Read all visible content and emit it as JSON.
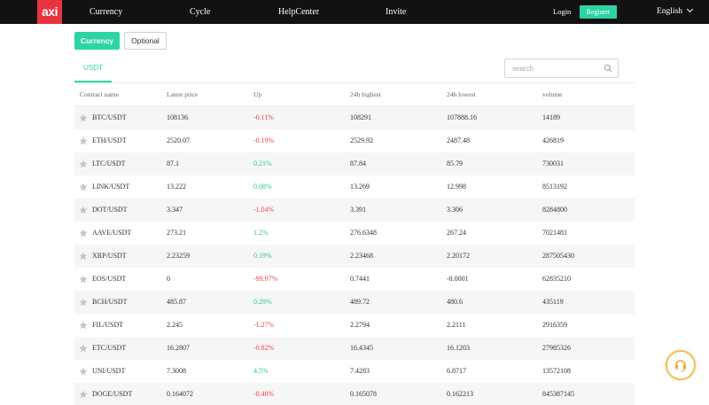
{
  "header": {
    "logo_text": "axi",
    "nav": [
      "Currency",
      "Cycle",
      "HelpCenter",
      "Invite"
    ],
    "login": "Login",
    "register": "Register",
    "language": "English"
  },
  "tabs": {
    "active": "Currency",
    "inactive": "Optional"
  },
  "subtab": "USDT",
  "search": {
    "placeholder": "search"
  },
  "table": {
    "headers": [
      "Contract name",
      "Latest price",
      "Up",
      "24h highest",
      "24h lowest",
      "volume"
    ],
    "rows": [
      {
        "name": "BTC/USDT",
        "price": "108136",
        "up": "-0.11%",
        "high": "108291",
        "low": "107888.16",
        "volume": "14189"
      },
      {
        "name": "ETH/USDT",
        "price": "2520.07",
        "up": "-0.19%",
        "high": "2529.92",
        "low": "2487.48",
        "volume": "426819"
      },
      {
        "name": "LTC/USDT",
        "price": "87.1",
        "up": "0.21%",
        "high": "87.84",
        "low": "85.79",
        "volume": "730031"
      },
      {
        "name": "LINK/USDT",
        "price": "13.222",
        "up": "0.08%",
        "high": "13.269",
        "low": "12.998",
        "volume": "8513192"
      },
      {
        "name": "DOT/USDT",
        "price": "3.347",
        "up": "-1.04%",
        "high": "3.391",
        "low": "3.306",
        "volume": "8284800"
      },
      {
        "name": "AAVE/USDT",
        "price": "273.21",
        "up": "1.2%",
        "high": "276.6348",
        "low": "267.24",
        "volume": "7021481"
      },
      {
        "name": "XRP/USDT",
        "price": "2.23259",
        "up": "0.19%",
        "high": "2.23468",
        "low": "2.20172",
        "volume": "287505430"
      },
      {
        "name": "EOS/USDT",
        "price": "0",
        "up": "-99.97%",
        "high": "0.7441",
        "low": "-0.0001",
        "volume": "62835210"
      },
      {
        "name": "BCH/USDT",
        "price": "485.87",
        "up": "0.29%",
        "high": "489.72",
        "low": "480.6",
        "volume": "435119"
      },
      {
        "name": "FIL/USDT",
        "price": "2.245",
        "up": "-1.27%",
        "high": "2.2794",
        "low": "2.2111",
        "volume": "2916359"
      },
      {
        "name": "ETC/USDT",
        "price": "16.2807",
        "up": "-0.82%",
        "high": "16.4345",
        "low": "16.1203",
        "volume": "27985326"
      },
      {
        "name": "UNI/USDT",
        "price": "7.3008",
        "up": "4.5%",
        "high": "7.4283",
        "low": "6.8717",
        "volume": "13572108"
      },
      {
        "name": "DOGE/USDT",
        "price": "0.164072",
        "up": "-0.48%",
        "high": "0.165078",
        "low": "0.162213",
        "volume": "845387145"
      }
    ]
  },
  "colors": {
    "accent": "#2dd4a6",
    "negative": "#f0404e",
    "positive": "#2dc2a0",
    "logo": "#e8343f",
    "support_ring": "#f3c24b"
  },
  "icons": {
    "search": "search-icon",
    "star": "star-icon",
    "support": "headset-icon",
    "chevron": "chevron-down-icon"
  }
}
